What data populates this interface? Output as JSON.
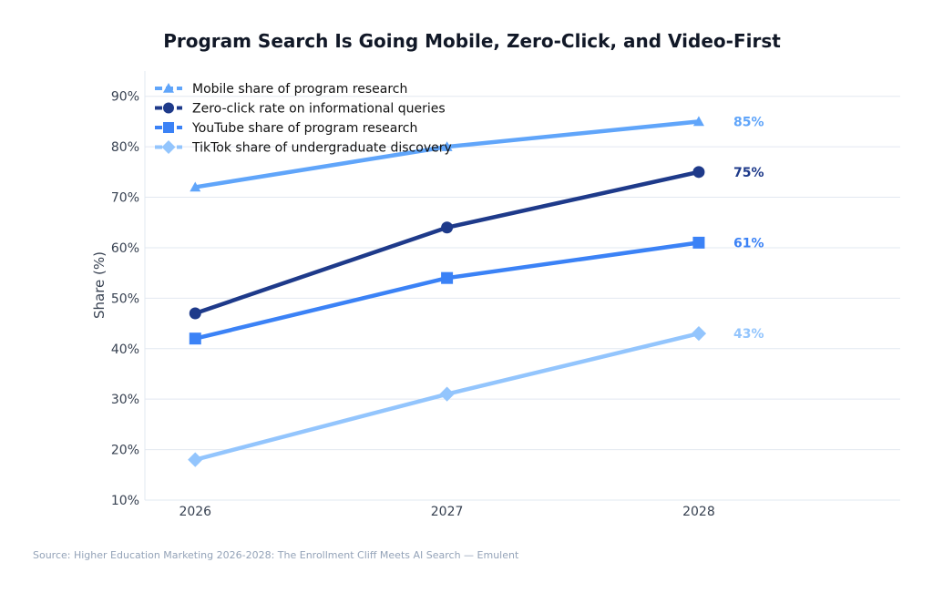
{
  "chart_data": {
    "type": "line",
    "title": "Program Search Is Going Mobile, Zero-Click, and Video-First",
    "xlabel": "",
    "ylabel": "Share (%)",
    "x": [
      2026,
      2027,
      2028
    ],
    "x_tick_labels": [
      "2026",
      "2027",
      "2028"
    ],
    "y_ticks": [
      10,
      20,
      30,
      40,
      50,
      60,
      70,
      80,
      90
    ],
    "y_tick_labels": [
      "10%",
      "20%",
      "30%",
      "40%",
      "50%",
      "60%",
      "70%",
      "80%",
      "90%"
    ],
    "ylim": [
      10,
      95
    ],
    "xlim": [
      2025.8,
      2028.8
    ],
    "grid": "horizontal",
    "legend_placement": "top-left",
    "series": [
      {
        "name": "Mobile share of program research",
        "values": [
          72,
          80,
          85
        ],
        "color": "#60a5fa",
        "marker": "triangle",
        "end_label": "85%"
      },
      {
        "name": "Zero-click rate on informational queries",
        "values": [
          47,
          64,
          75
        ],
        "color": "#1e3a8a",
        "marker": "circle",
        "end_label": "75%"
      },
      {
        "name": "YouTube share of program research",
        "values": [
          42,
          54,
          61
        ],
        "color": "#3b82f6",
        "marker": "square",
        "end_label": "61%"
      },
      {
        "name": "TikTok share of undergraduate discovery",
        "values": [
          18,
          31,
          43
        ],
        "color": "#93c5fd",
        "marker": "diamond",
        "end_label": "43%"
      }
    ],
    "source": "Source: Higher Education Marketing 2026-2028: The Enrollment Cliff Meets AI Search — Emulent"
  }
}
